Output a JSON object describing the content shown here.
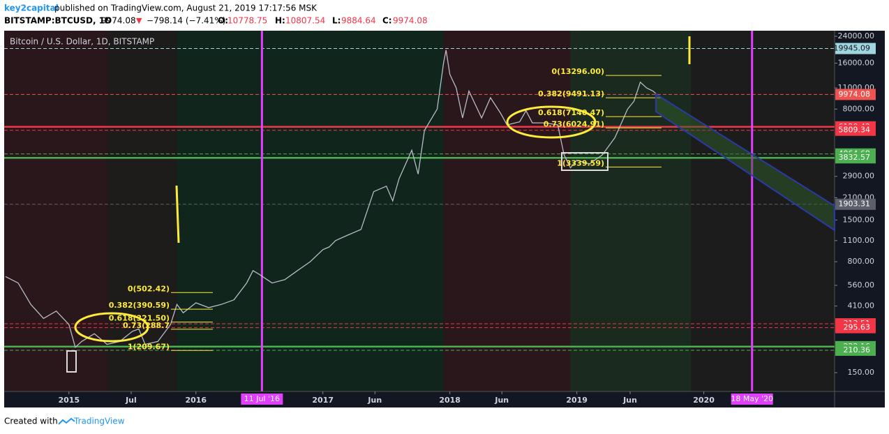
{
  "header": {
    "author": "key2capital",
    "published": "published on TradingView.com, August 21, 2019 17:17:56 MSK",
    "symbol": "BITSTAMP:BTCUSD, 1D",
    "last": "9974.08",
    "change": "−798.14 (−7.41%)",
    "o_label": "O:",
    "open": "10778.75",
    "h_label": "H:",
    "high": "10807.54",
    "l_label": "L:",
    "low": "9884.64",
    "c_label": "C:",
    "close": "9974.08"
  },
  "footer": {
    "created": "Created with",
    "brand": "TradingView"
  },
  "chart_data": {
    "type": "line",
    "title": "Bitcoin / U.S. Dollar, 1D, BITSTAMP",
    "log_scale": true,
    "x": [
      2014.5,
      2014.6,
      2014.7,
      2014.8,
      2014.9,
      2015.0,
      2015.05,
      2015.1,
      2015.2,
      2015.3,
      2015.4,
      2015.5,
      2015.55,
      2015.6,
      2015.7,
      2015.8,
      2015.85,
      2015.9,
      2016.0,
      2016.1,
      2016.2,
      2016.3,
      2016.4,
      2016.45,
      2016.5,
      2016.6,
      2016.7,
      2016.8,
      2016.9,
      2017.0,
      2017.05,
      2017.1,
      2017.2,
      2017.3,
      2017.4,
      2017.5,
      2017.55,
      2017.6,
      2017.7,
      2017.75,
      2017.8,
      2017.9,
      2017.95,
      2017.97,
      2018.0,
      2018.05,
      2018.1,
      2018.15,
      2018.25,
      2018.32,
      2018.4,
      2018.45,
      2018.55,
      2018.6,
      2018.65,
      2018.75,
      2018.85,
      2018.9,
      2018.95,
      2019.0,
      2019.1,
      2019.2,
      2019.3,
      2019.4,
      2019.45,
      2019.5,
      2019.55,
      2019.6,
      2019.63
    ],
    "series": [
      {
        "name": "BTCUSD",
        "color": "#b8bcc6",
        "values": [
          640,
          580,
          420,
          340,
          380,
          310,
          220,
          240,
          270,
          230,
          240,
          280,
          290,
          230,
          240,
          310,
          420,
          370,
          430,
          400,
          420,
          450,
          580,
          700,
          660,
          580,
          610,
          700,
          800,
          960,
          1000,
          1100,
          1200,
          1300,
          2300,
          2500,
          2000,
          2800,
          4300,
          3000,
          5800,
          8000,
          16000,
          19500,
          13500,
          11000,
          7000,
          10500,
          7000,
          9500,
          7500,
          6300,
          6600,
          7800,
          6500,
          6500,
          6300,
          4000,
          3300,
          3700,
          3500,
          4000,
          5200,
          8000,
          9000,
          12000,
          11000,
          10500,
          9974.08
        ]
      }
    ],
    "xlim": [
      2014.49,
      2021.03
    ],
    "xticks": [
      2015,
      {
        "value": 2015.49,
        "label": "Jul"
      },
      2016,
      2017,
      {
        "value": 2017.41,
        "label": "Jun"
      },
      2018,
      {
        "value": 2018.41,
        "label": "Jun"
      },
      2019,
      {
        "value": 2019.42,
        "label": "Jun"
      },
      2020
    ],
    "ylim": [
      113,
      26100
    ],
    "yticks": [
      {
        "value": 150,
        "label": "150.00"
      },
      {
        "value": 410,
        "label": "410.00"
      },
      {
        "value": 560,
        "label": "560.00"
      },
      {
        "value": 800,
        "label": "800.00"
      },
      {
        "value": 1100,
        "label": "1100.00"
      },
      {
        "value": 1500,
        "label": "1500.00"
      },
      {
        "value": 2100,
        "label": "2100.00"
      },
      {
        "value": 2900,
        "label": "2900.00"
      },
      {
        "value": 8000,
        "label": "8000.00"
      },
      {
        "value": 11000,
        "label": "11000.00"
      },
      {
        "value": 16000,
        "label": "16000.00"
      },
      {
        "value": 24000,
        "label": "24000.00"
      }
    ],
    "levels": [
      {
        "value": 19945.09,
        "color": "#9fd6e0"
      },
      {
        "value": 9974.08,
        "color": "#ef5350"
      },
      {
        "value": 6120.42,
        "color": "#f23645"
      },
      {
        "value": 5809.34,
        "color": "#f23645"
      },
      {
        "value": 4064.69,
        "color": "#4caf50"
      },
      {
        "value": 3832.57,
        "color": "#4caf50"
      },
      {
        "value": 1903.31,
        "color": "#5d606b"
      },
      {
        "value": 313.51,
        "color": "#f23645"
      },
      {
        "value": 295.63,
        "color": "#f23645"
      },
      {
        "value": 222.16,
        "color": "#4caf50"
      },
      {
        "value": 210.36,
        "color": "#4caf50"
      }
    ],
    "markers": [
      {
        "value": 2016.52,
        "label": "11 Jul '16"
      },
      {
        "value": 2020.38,
        "label": "18 May '20"
      }
    ],
    "annotations": [
      {
        "label": "0(502.42)",
        "value": 502.42
      },
      {
        "label": "0.382(390.59)",
        "value": 390.59
      },
      {
        "label": "0.618(321.50)",
        "value": 321.5
      },
      {
        "label": "0.73(288.7",
        "value": 288.7
      },
      {
        "label": "1(209.67)",
        "value": 209.67
      },
      {
        "label": "0(13296.00)",
        "value": 13296
      },
      {
        "label": "0.382(9491.13)",
        "value": 9491.13
      },
      {
        "label": "0.618(7140.47)",
        "value": 7140.47
      },
      {
        "label": "0.73(6024.91)",
        "value": 6024.91
      },
      {
        "label": "1(3339.59)",
        "value": 3339.59
      }
    ]
  }
}
